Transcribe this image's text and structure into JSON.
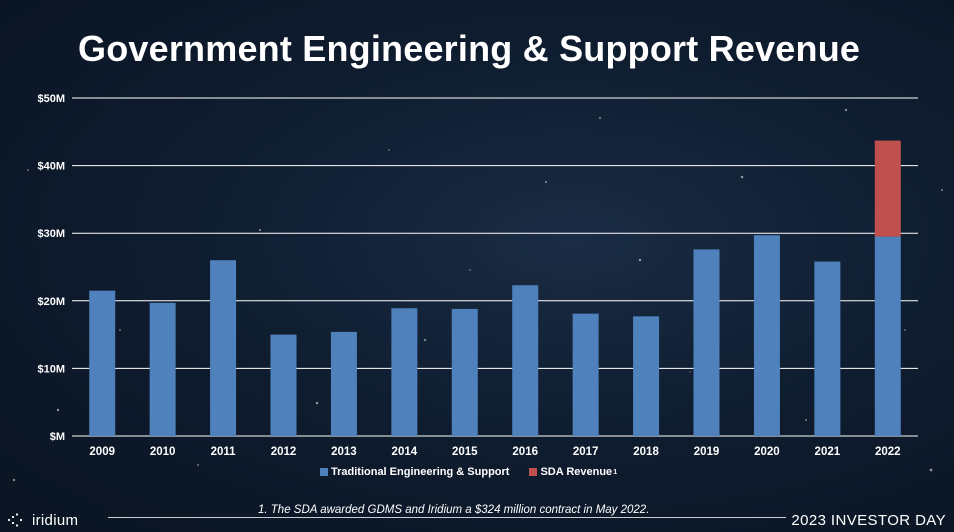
{
  "title": "Government Engineering & Support Revenue",
  "footnote": "1. The SDA awarded GDMS and Iridium a $324 million contract in May 2022.",
  "logo_text": "iridium",
  "event_label": "2023 INVESTOR DAY",
  "legend": {
    "traditional": "Traditional Engineering & Support",
    "sda": "SDA Revenue",
    "sda_sup": "1"
  },
  "colors": {
    "traditional": "#4f81bd",
    "sda": "#c0504d",
    "background": "#0f1d30"
  },
  "chart_data": {
    "type": "bar",
    "stacked": true,
    "title": "Government Engineering & Support Revenue",
    "xlabel": "",
    "ylabel": "",
    "ylim": [
      0,
      50
    ],
    "y_ticks": [
      "$M",
      "$10M",
      "$20M",
      "$30M",
      "$40M",
      "$50M"
    ],
    "y_tick_values": [
      0,
      10,
      20,
      30,
      40,
      50
    ],
    "grid": true,
    "legend_position": "bottom",
    "categories": [
      "2009",
      "2010",
      "2011",
      "2012",
      "2013",
      "2014",
      "2015",
      "2016",
      "2017",
      "2018",
      "2019",
      "2020",
      "2021",
      "2022"
    ],
    "series": [
      {
        "name": "Traditional Engineering & Support",
        "color": "#4f81bd",
        "values": [
          21.5,
          19.7,
          26.0,
          15.0,
          15.4,
          18.9,
          18.8,
          22.3,
          18.1,
          17.7,
          27.6,
          29.7,
          25.8,
          29.5
        ]
      },
      {
        "name": "SDA Revenue",
        "color": "#c0504d",
        "values": [
          0,
          0,
          0,
          0,
          0,
          0,
          0,
          0,
          0,
          0,
          0,
          0,
          0,
          14.2
        ]
      }
    ]
  }
}
